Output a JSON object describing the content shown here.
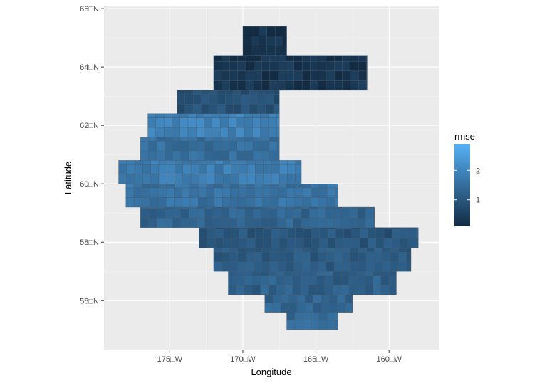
{
  "chart_data": {
    "type": "heatmap",
    "title": "",
    "xlabel": "Longitude",
    "ylabel": "Latitude",
    "xlim": [
      -179.5,
      -156.6
    ],
    "ylim": [
      54.3,
      66.1
    ],
    "x_ticks": [
      {
        "value": -175,
        "label": "175□W"
      },
      {
        "value": -170,
        "label": "170□W"
      },
      {
        "value": -165,
        "label": "165□W"
      },
      {
        "value": -160,
        "label": "160□W"
      }
    ],
    "y_ticks": [
      {
        "value": 56,
        "label": "56□N"
      },
      {
        "value": 58,
        "label": "58□N"
      },
      {
        "value": 60,
        "label": "60□N"
      },
      {
        "value": 62,
        "label": "62□N"
      },
      {
        "value": 64,
        "label": "64□N"
      },
      {
        "value": 66,
        "label": "66□N"
      }
    ],
    "grid": true,
    "panel_background": "#ebebeb",
    "legend": {
      "title": "rmse",
      "position": "right",
      "range": [
        0.1,
        2.9
      ],
      "breaks": [
        {
          "value": 1,
          "label": "1"
        },
        {
          "value": 2,
          "label": "2"
        }
      ],
      "color_low": "#132b43",
      "color_high": "#56b1f7"
    },
    "cell_size_deg": {
      "lon": 0.55,
      "lat": 0.33
    },
    "regions": [
      {
        "lat_min": 55.0,
        "lat_max": 55.6,
        "lon_min": -167.0,
        "lon_max": -163.5,
        "rmse": 1.4
      },
      {
        "lat_min": 55.6,
        "lat_max": 56.2,
        "lon_min": -168.5,
        "lon_max": -162.5,
        "rmse": 1.3
      },
      {
        "lat_min": 56.2,
        "lat_max": 57.0,
        "lon_min": -171.0,
        "lon_max": -159.5,
        "rmse": 1.2
      },
      {
        "lat_min": 57.0,
        "lat_max": 57.8,
        "lon_min": -172.0,
        "lon_max": -158.5,
        "rmse": 1.1
      },
      {
        "lat_min": 57.8,
        "lat_max": 58.5,
        "lon_min": -173.0,
        "lon_max": -158.0,
        "rmse": 1.0
      },
      {
        "lat_min": 58.5,
        "lat_max": 59.2,
        "lon_min": -177.0,
        "lon_max": -161.0,
        "rmse": 1.3
      },
      {
        "lat_min": 59.2,
        "lat_max": 60.0,
        "lon_min": -178.0,
        "lon_max": -163.5,
        "rmse": 1.6
      },
      {
        "lat_min": 60.0,
        "lat_max": 60.8,
        "lon_min": -178.5,
        "lon_max": -166.0,
        "rmse": 1.8
      },
      {
        "lat_min": 60.8,
        "lat_max": 61.6,
        "lon_min": -177.0,
        "lon_max": -167.5,
        "rmse": 1.5
      },
      {
        "lat_min": 61.6,
        "lat_max": 62.4,
        "lon_min": -176.5,
        "lon_max": -167.5,
        "rmse": 1.9
      },
      {
        "lat_min": 62.4,
        "lat_max": 63.2,
        "lon_min": -174.5,
        "lon_max": -167.5,
        "rmse": 0.9
      },
      {
        "lat_min": 63.2,
        "lat_max": 64.4,
        "lon_min": -172.0,
        "lon_max": -161.5,
        "rmse": 0.3
      },
      {
        "lat_min": 64.4,
        "lat_max": 65.4,
        "lon_min": -170.0,
        "lon_max": -167.0,
        "rmse": 0.2
      }
    ]
  }
}
